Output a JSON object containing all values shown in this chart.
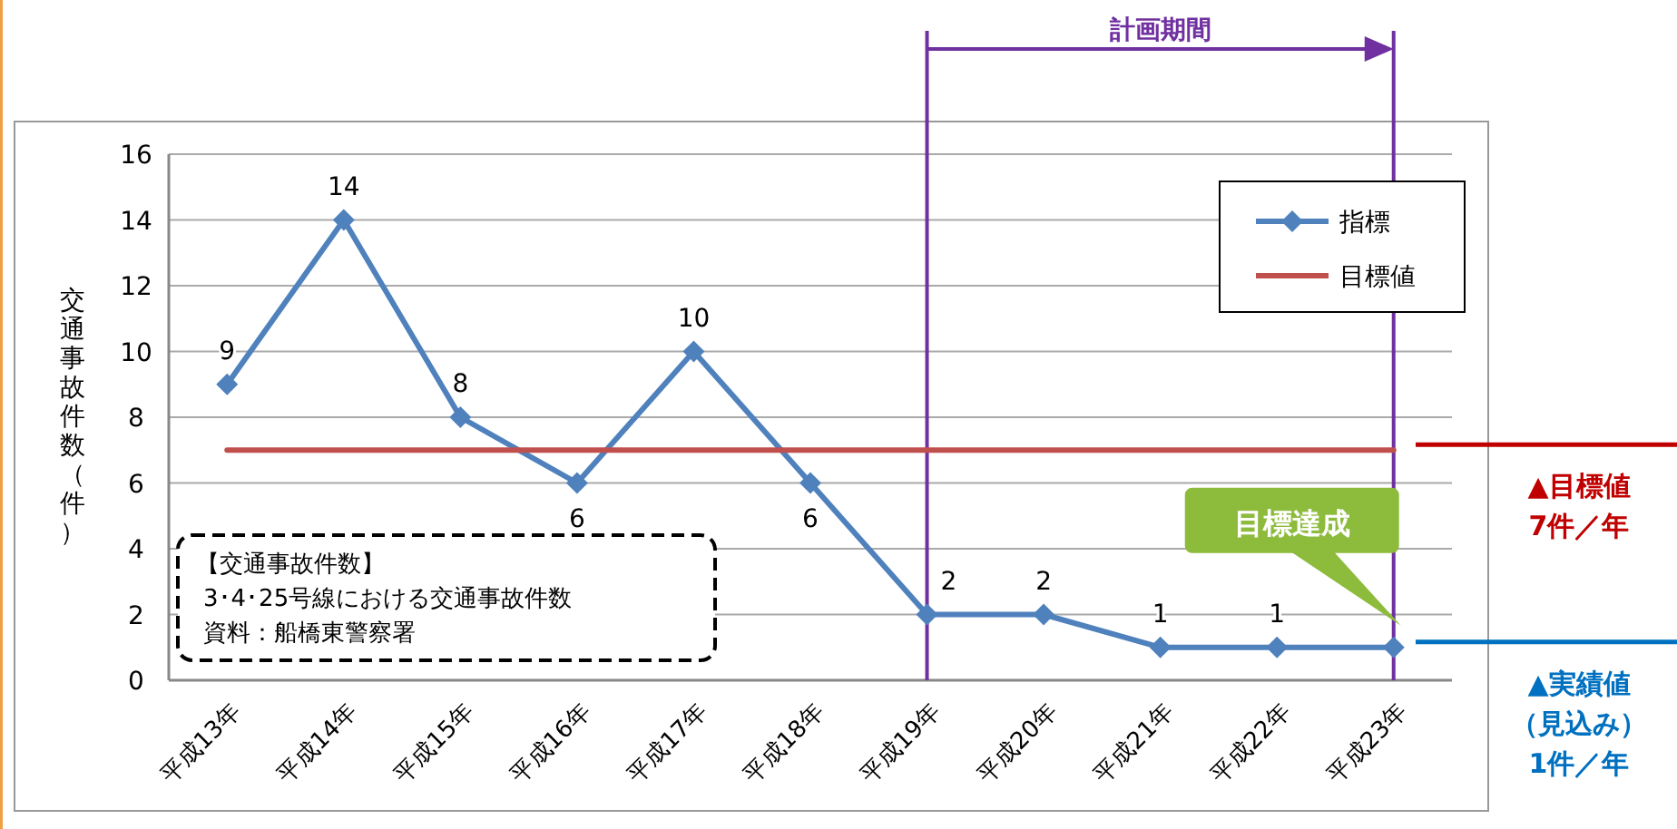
{
  "chart_data": {
    "type": "line",
    "ylabel": "交通事故件数（件）",
    "categories": [
      "平成13年",
      "平成14年",
      "平成15年",
      "平成16年",
      "平成17年",
      "平成18年",
      "平成19年",
      "平成20年",
      "平成21年",
      "平成22年",
      "平成23年"
    ],
    "series": [
      {
        "name": "指標",
        "color": "#4f81bd",
        "marker": "diamond",
        "values": [
          9,
          14,
          8,
          6,
          10,
          6,
          2,
          2,
          1,
          1,
          1
        ],
        "value_labels": [
          "9",
          "14",
          "8",
          "6",
          "10",
          "6",
          "2",
          "2",
          "1",
          "1",
          null
        ]
      },
      {
        "name": "目標値",
        "color": "#c0504d",
        "marker": "none",
        "values": [
          7,
          7,
          7,
          7,
          7,
          7,
          7,
          7,
          7,
          7,
          7
        ]
      }
    ],
    "ylim": [
      0,
      16
    ],
    "yticks": [
      0,
      2,
      4,
      6,
      8,
      10,
      12,
      14,
      16
    ],
    "grid": "y",
    "legend": "top right",
    "ref_lines": [
      {
        "axis": "x",
        "value": "平成19年",
        "color": "#7030a0"
      },
      {
        "axis": "x",
        "value": "平成23年",
        "color": "#7030a0"
      }
    ],
    "annotations": [
      "計画期間",
      "【交通事故件数】",
      "3･4･25号線における交通事故件数",
      "資料：船橋東警察署",
      "目標達成",
      "▲目標値",
      "7件／年",
      "▲実績値",
      "（見込み）",
      "1件／年"
    ]
  }
}
